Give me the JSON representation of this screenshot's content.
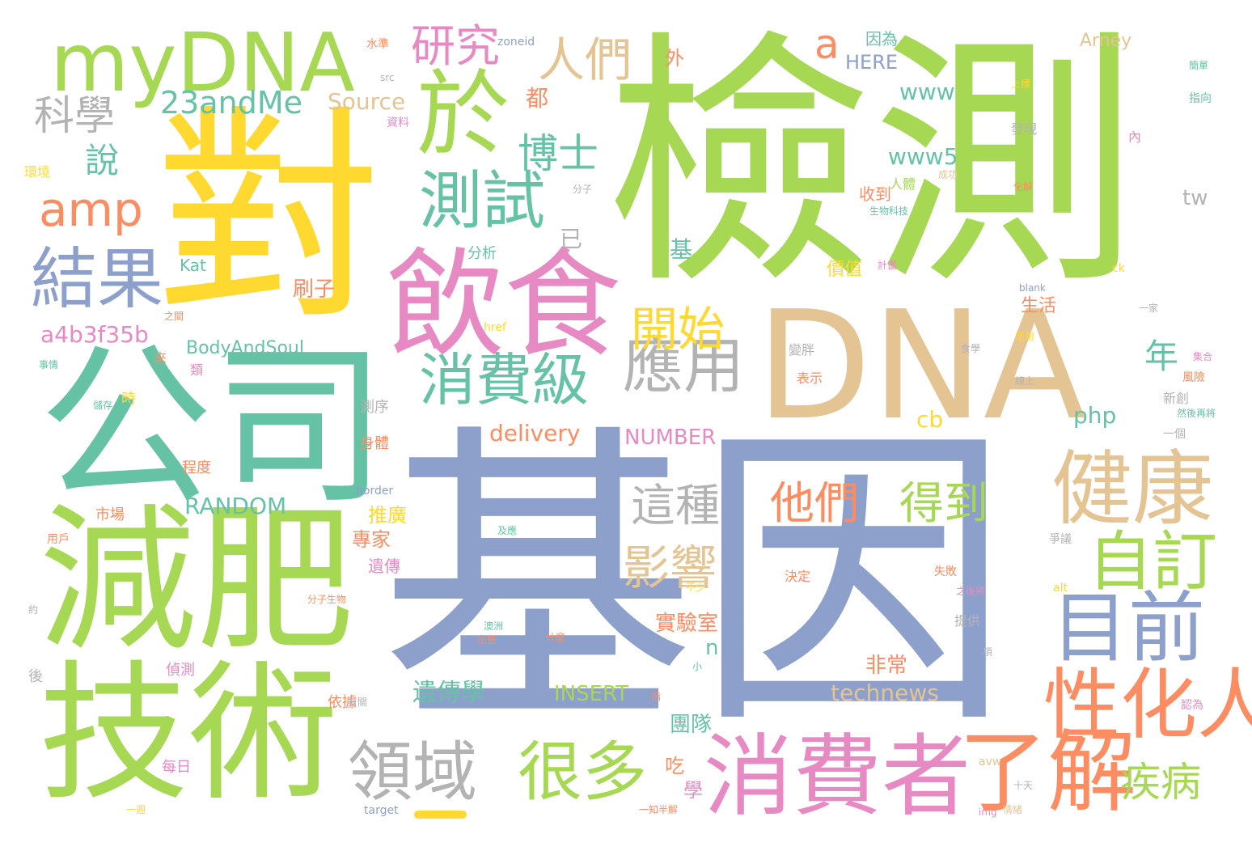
{
  "palette": {
    "green": "#a6d854",
    "yellow": "#ffd92f",
    "tan": "#e5c494",
    "blue": "#8da0cb",
    "teal": "#66c2a5",
    "orange": "#fc8d62",
    "pink": "#e78ac3",
    "gray": "#b3b3b3"
  },
  "words": {
    "jiance": "檢測",
    "dui": "對",
    "jiyin": "基因",
    "dna": "DNA",
    "gongsi": "公司",
    "jianfei": "減肥",
    "jishu": "技術",
    "yinshi": "飲食",
    "mydna": "myDNA",
    "yu": "於",
    "xiaofeizhe": "消費者",
    "ceshi": "測試",
    "jieguo": "結果",
    "jiankang": "健康",
    "gexinghua_ren": "性化人",
    "liaojie": "了解",
    "mubqian": "目前",
    "zidingyi": "自訂",
    "yingyong": "應用",
    "xiaofeiji": "消費級",
    "lingyu": "領域",
    "henduo": "很多",
    "yanjiu": "研究",
    "renmen": "人們",
    "amp": "amp",
    "kexue": "科學",
    "a23": "23andMe",
    "boshi": "博士",
    "shuo": "說",
    "kaishi": "開始",
    "yingxiang": "影響",
    "zhezhong": "這種",
    "tamen": "他們",
    "dedao": "得到",
    "jibing": "疾病",
    "nian": "年",
    "a_lower": "a",
    "here": "HERE",
    "www": "www",
    "www5": "www5",
    "source": "Source",
    "doudu": "都",
    "wai": "外",
    "yi": "已",
    "tw": "tw",
    "php": "php",
    "cb": "cb",
    "delivery": "delivery",
    "number": "NUMBER",
    "a4b": "a4b3f35b",
    "bodyandsoul": "BodyAndSoul",
    "random": "RANDOM",
    "technews": "technews",
    "insert": "INSERT",
    "yichuanxue": "遺傳學",
    "shiyanshi": "實驗室",
    "feichang": "非常",
    "tuandui": "團隊",
    "shuazi": "刷子",
    "ji": "基",
    "tuiguang": "推廣",
    "zhuanjia": "專家",
    "yichuan": "遺傳",
    "kat": "Kat",
    "fenxi": "分析",
    "n_lower": "n",
    "arney": "Arney",
    "chi": "吃",
    "xue": "學",
    "shengshuo": "生活",
    "jiazhi": "價值",
    "shoudao": "收到",
    "renti": "人體",
    "yinwei": "因為",
    "shuiping": "水準",
    "zoneid": "zoneid",
    "src": "src",
    "ziliao": "資料",
    "huanjing": "環境",
    "fenzi": "分子",
    "fenzishengwu": "分子生物",
    "shichang": "市場",
    "yonghu": "用戶",
    "chengdu": "程度",
    "zhenice": "偵測",
    "hou": "後",
    "meiri": "每日",
    "yiju": "依據",
    "lai": "來",
    "lei": "類",
    "shi": "時",
    "cexu": "測序",
    "shenti": "身體",
    "border": "border",
    "target": "target",
    "href": "href",
    "img": "img",
    "alt": "alt",
    "avw": "avw",
    "ck": "ck",
    "blank": "blank",
    "bianpang": "變胖",
    "biaoshi": "表示",
    "juedin": "決定",
    "tigong": "提供",
    "faxian": "發現",
    "shengwukeji": "生物科技",
    "xinchuang": "新創",
    "fengxian": "風險",
    "yige": "一個",
    "renwei": "認為",
    "shiqing": "事情",
    "zhengyi": "爭議",
    "shibai": "失敗",
    "shitian": "十天",
    "qingxu": "情緒",
    "yizhibanjie": "一知半解",
    "chengong": "成功",
    "keyi": "可能",
    "ruguo": "如果",
    "zhixiang": "指向",
    "jiandan": "簡單",
    "neirong": "內",
    "changyong": "常用",
    "tebie": "特別",
    "shangbiao": "上標",
    "huajie": "化解",
    "jieshou": "接收",
    "jihua": "計畫",
    "ming": "名為",
    "shuzhi": "數值",
    "yaozhi": "要知",
    "dagai": "大概",
    "jiaquan": "加權",
    "ruhe": "如何",
    "yijia": "一家",
    "xianshang": "線上",
    "shiyong": "食學",
    "shiwu": "食物",
    "jiaojiao": "集合",
    "ranhouzaijiang": "然後再將",
    "bushao": "不少",
    "zhihoujiang": "之後將",
    "shenmo": "什麼",
    "xiang": "項",
    "chuxue": "出售",
    "aozhou": "澳洲",
    "jiyou": "及應",
    "xiao": "小",
    "zhi": "指",
    "youguan": "有關",
    "shifeng": "三峰",
    "yizhou": "一週",
    "zhuanshou": "轉售",
    "ya": "牙齦",
    "yuan": "約",
    "zhijian": "之間",
    "bao": "保存",
    "gulou": "隱私",
    "baocun": "儲存"
  }
}
